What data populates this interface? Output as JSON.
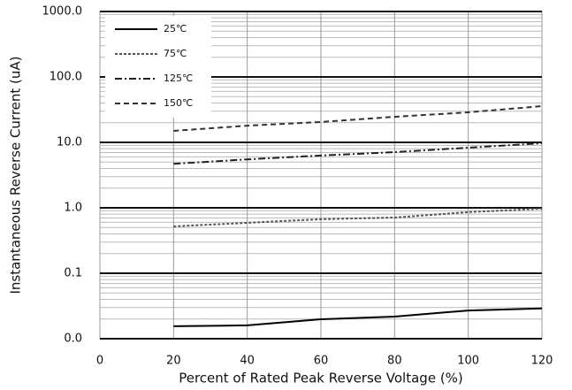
{
  "chart_data": {
    "type": "line",
    "xlabel": "Percent of Rated Peak Reverse Voltage (%)",
    "ylabel": "Instantaneous Reverse Current (uA)",
    "x": [
      20,
      40,
      60,
      80,
      100,
      120
    ],
    "series": [
      {
        "name": "25℃",
        "color": "#000000",
        "style": "solid",
        "values": [
          0.0155,
          0.016,
          0.0198,
          0.0218,
          0.027,
          0.029
        ]
      },
      {
        "name": "75℃",
        "color": "#555555",
        "style": "dotted",
        "values": [
          0.52,
          0.59,
          0.67,
          0.71,
          0.86,
          0.97
        ]
      },
      {
        "name": "125℃",
        "color": "#222222",
        "style": "dashdot",
        "values": [
          4.7,
          5.5,
          6.3,
          7.1,
          8.3,
          9.7
        ]
      },
      {
        "name": "150℃",
        "color": "#333333",
        "style": "dashed",
        "values": [
          15,
          18,
          20.5,
          24.6,
          28.8,
          35.8
        ]
      }
    ],
    "xlim": [
      0,
      120
    ],
    "xticks": [
      0,
      20,
      40,
      60,
      80,
      100,
      120
    ],
    "ylim": [
      0.01,
      1000
    ],
    "yticks": [
      {
        "value": 0.01,
        "label": "0.0"
      },
      0.1,
      {
        "value": 1,
        "label": "1.0"
      },
      {
        "value": 10,
        "label": "10.0"
      },
      {
        "value": 100,
        "label": "100.0"
      },
      {
        "value": 1000,
        "label": "1000.0"
      }
    ],
    "ylog": true,
    "grid": true,
    "minor_grid": true,
    "legend": "upper-left"
  }
}
